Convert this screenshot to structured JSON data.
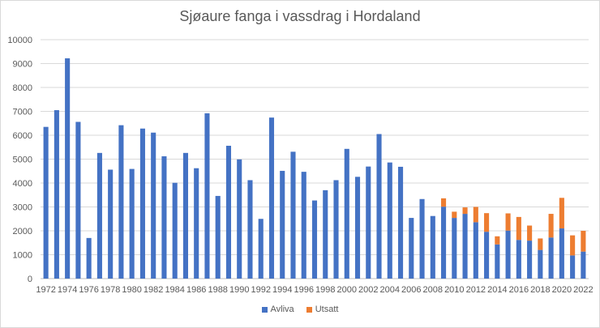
{
  "chart_data": {
    "type": "bar",
    "stacked": true,
    "title": "Sjøaure fanga i vassdrag i Hordaland",
    "xlabel": "",
    "ylabel": "",
    "ylim": [
      0,
      10000
    ],
    "ytick_step": 1000,
    "grid": true,
    "legend_position": "bottom",
    "categories": [
      1972,
      1973,
      1974,
      1975,
      1976,
      1977,
      1978,
      1979,
      1980,
      1981,
      1982,
      1983,
      1984,
      1985,
      1986,
      1987,
      1988,
      1989,
      1990,
      1991,
      1992,
      1993,
      1994,
      1995,
      1996,
      1997,
      1998,
      1999,
      2000,
      2001,
      2002,
      2003,
      2004,
      2005,
      2006,
      2007,
      2008,
      2009,
      2010,
      2011,
      2012,
      2013,
      2014,
      2015,
      2016,
      2017,
      2018,
      2019,
      2020,
      2021,
      2022
    ],
    "x_tick_labels": [
      "1972",
      "1974",
      "1976",
      "1978",
      "1980",
      "1982",
      "1984",
      "1986",
      "1988",
      "1990",
      "1992",
      "1994",
      "1996",
      "1998",
      "2000",
      "2002",
      "2004",
      "2006",
      "2008",
      "2010",
      "2012",
      "2014",
      "2016",
      "2018",
      "2020",
      "2022"
    ],
    "series": [
      {
        "name": "Avliva",
        "color": "#4472c4",
        "values": [
          6350,
          7050,
          9220,
          6560,
          1700,
          5260,
          4560,
          6420,
          4590,
          6280,
          6110,
          5120,
          4010,
          5260,
          4620,
          6920,
          3460,
          5560,
          4990,
          4120,
          2500,
          6740,
          4510,
          5310,
          4470,
          3270,
          3700,
          4120,
          5430,
          4260,
          4690,
          6050,
          4860,
          4680,
          2540,
          3330,
          2620,
          3010,
          2540,
          2710,
          2360,
          1960,
          1430,
          2010,
          1620,
          1590,
          1200,
          1720,
          2100,
          970,
          1130
        ]
      },
      {
        "name": "Utsatt",
        "color": "#ed7d31",
        "values": [
          0,
          0,
          0,
          0,
          0,
          0,
          0,
          0,
          0,
          0,
          0,
          0,
          0,
          0,
          0,
          0,
          0,
          0,
          0,
          0,
          0,
          0,
          0,
          0,
          0,
          0,
          0,
          0,
          0,
          0,
          0,
          0,
          0,
          0,
          0,
          0,
          0,
          350,
          260,
          270,
          640,
          780,
          340,
          720,
          960,
          630,
          480,
          990,
          1280,
          840,
          870
        ]
      }
    ]
  }
}
